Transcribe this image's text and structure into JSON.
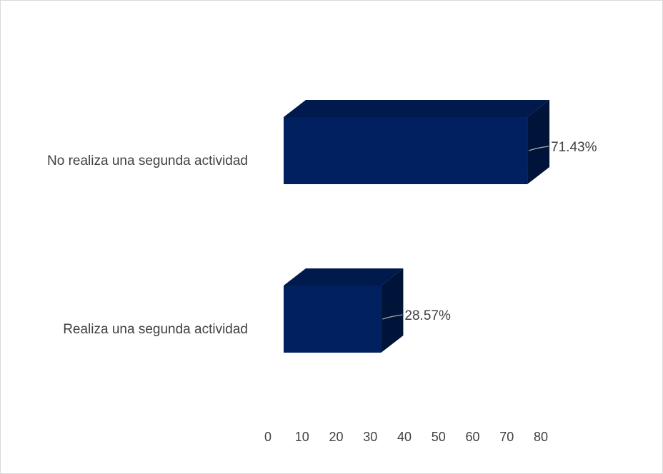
{
  "chart_data": {
    "type": "bar",
    "orientation": "horizontal",
    "style": "3d",
    "categories": [
      "No realiza una segunda actividad",
      "Realiza una segunda actividad"
    ],
    "values": [
      71.43,
      28.57
    ],
    "data_labels": [
      "71.43%",
      "28.57%"
    ],
    "xlim": [
      0,
      80
    ],
    "x_ticks": [
      0,
      10,
      20,
      30,
      40,
      50,
      60,
      70,
      80
    ],
    "grid": false,
    "legend": "none",
    "colors": {
      "bar_front": "#002060",
      "bar_top": "#001a4d",
      "bar_side": "#001338",
      "text": "#404040",
      "leader_line": "#a6a6a6"
    }
  }
}
